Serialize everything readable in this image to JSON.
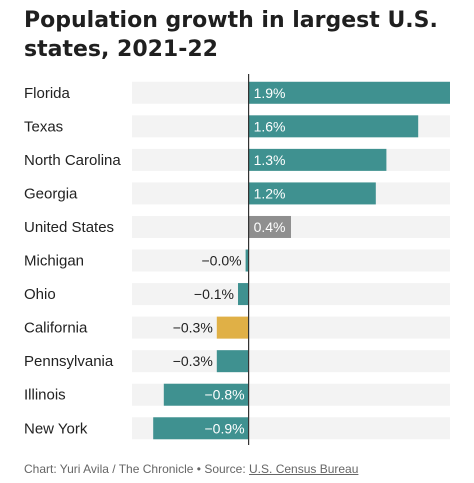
{
  "chart_data": {
    "type": "bar",
    "orientation": "horizontal",
    "title": "Population growth in largest U.S. states, 2021-22",
    "categories": [
      "Florida",
      "Texas",
      "North Carolina",
      "Georgia",
      "United States",
      "Michigan",
      "Ohio",
      "California",
      "Pennsylvania",
      "Illinois",
      "New York"
    ],
    "values": [
      1.9,
      1.6,
      1.3,
      1.2,
      0.4,
      -0.02,
      -0.1,
      -0.3,
      -0.3,
      -0.8,
      -0.9
    ],
    "value_labels": [
      "1.9%",
      "1.6%",
      "1.3%",
      "1.2%",
      "0.4%",
      "−0.0%",
      "−0.1%",
      "−0.3%",
      "−0.3%",
      "−0.8%",
      "−0.9%"
    ],
    "highlight": {
      "United States": "#8f8f8f",
      "California": "#e0b046"
    },
    "bar_color": "#3f9190",
    "xlim": [
      -1.1,
      1.9
    ],
    "grid": false
  },
  "footer": {
    "credit": "Chart: Yuri Avila / The Chronicle",
    "separator": " • ",
    "source_prefix": "Source: ",
    "source_name": "U.S. Census Bureau"
  }
}
